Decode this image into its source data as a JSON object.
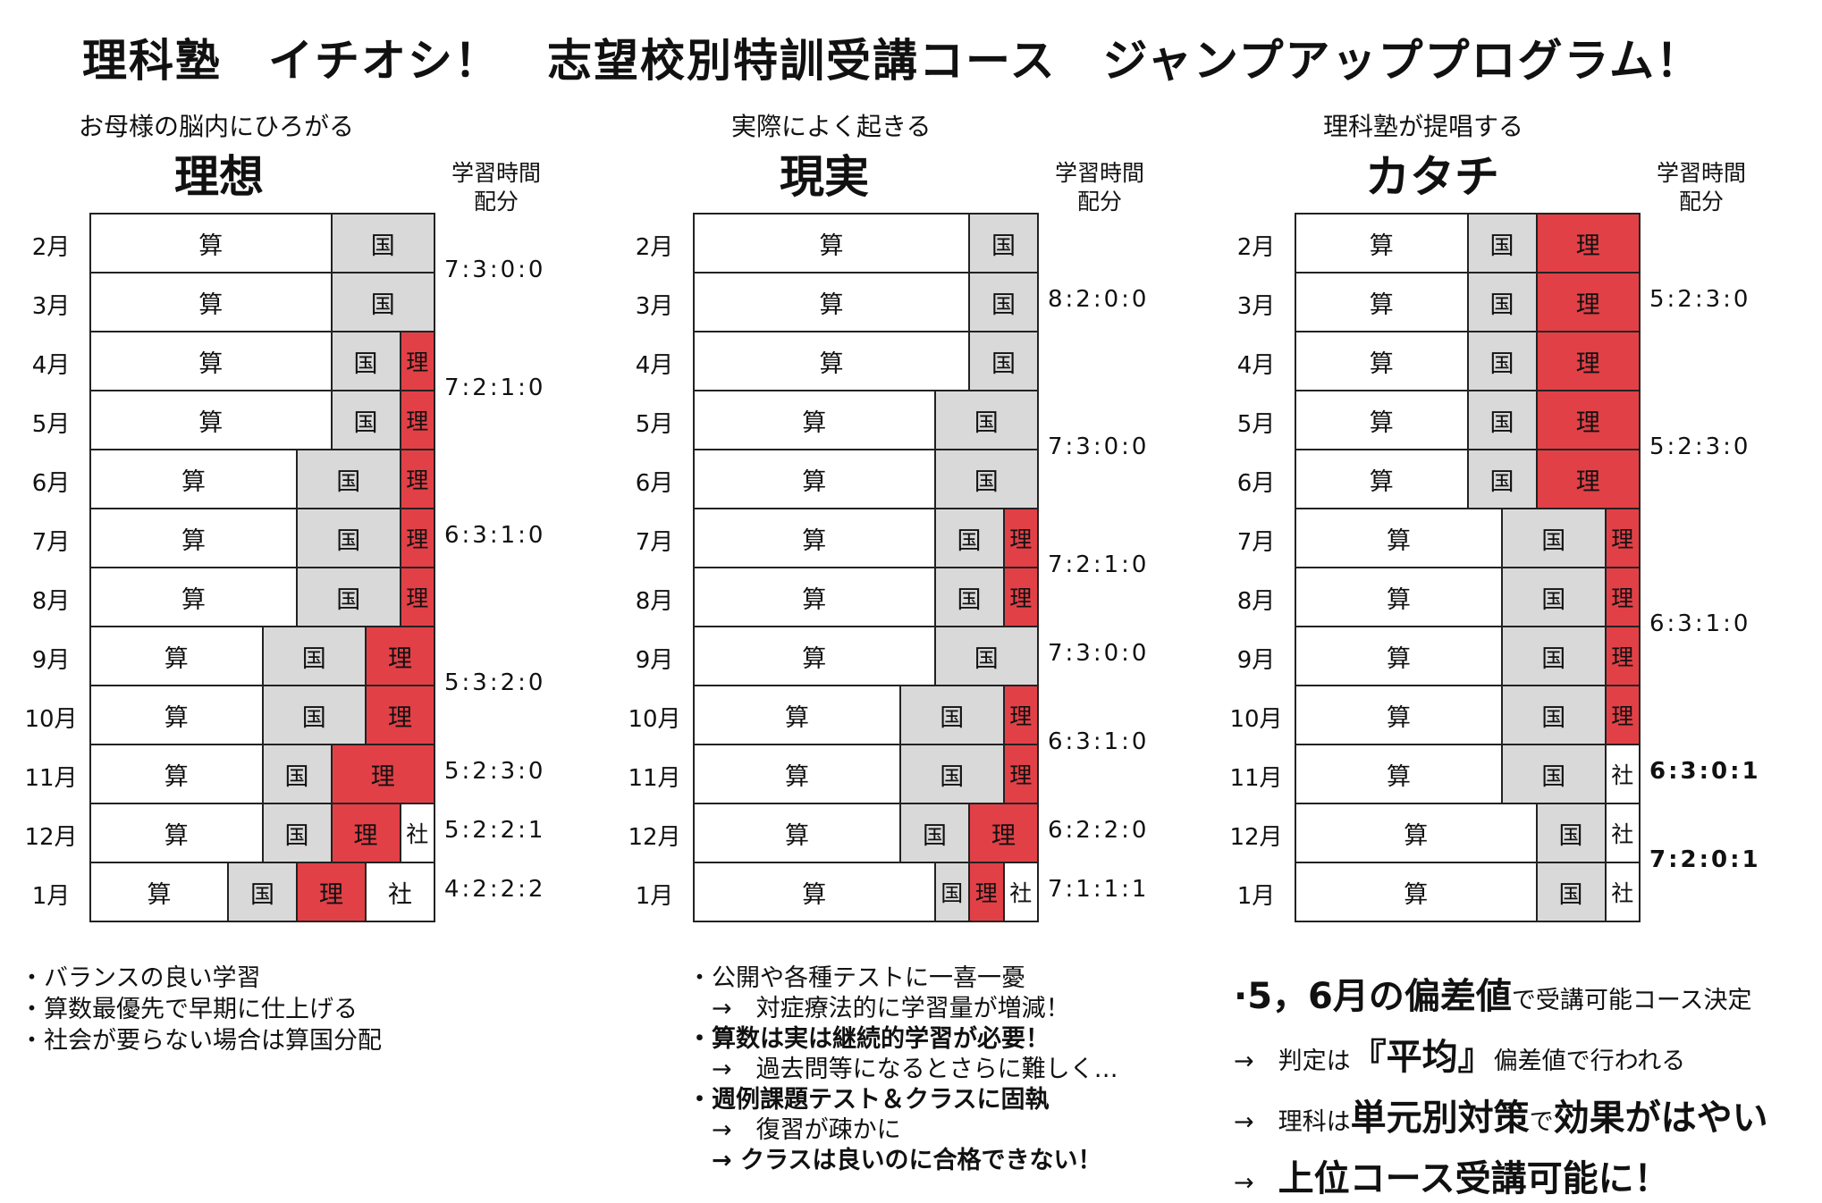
{
  "title": "理科塾　イチオシ！　志望校別特訓受講コース　ジャンプアッププログラム！",
  "time_header": [
    "学習時間",
    "配分"
  ],
  "subjects": {
    "san": "算",
    "koku": "国",
    "ri": "理",
    "sha": "社"
  },
  "colors": {
    "koku": "#d9d9d9",
    "ri": "#e24047",
    "san": "#ffffff",
    "sha": "#ffffff"
  },
  "columns": [
    {
      "subtitle": "お母様の脳内にひろがる",
      "heading": "理想",
      "months": [
        "2月",
        "3月",
        "4月",
        "5月",
        "6月",
        "7月",
        "8月",
        "9月",
        "10月",
        "11月",
        "12月",
        "1月"
      ],
      "rows": [
        [
          7,
          3,
          0,
          0
        ],
        [
          7,
          3,
          0,
          0
        ],
        [
          7,
          2,
          1,
          0
        ],
        [
          7,
          2,
          1,
          0
        ],
        [
          6,
          3,
          1,
          0
        ],
        [
          6,
          3,
          1,
          0
        ],
        [
          6,
          3,
          1,
          0
        ],
        [
          5,
          3,
          2,
          0
        ],
        [
          5,
          3,
          2,
          0
        ],
        [
          5,
          2,
          3,
          0
        ],
        [
          5,
          2,
          2,
          1
        ],
        [
          4,
          2,
          2,
          2
        ]
      ],
      "ratios": [
        {
          "text": "7:3:0:0",
          "row": 0.5
        },
        {
          "text": "7:2:1:0",
          "row": 2.5
        },
        {
          "text": "6:3:1:0",
          "row": 5.0
        },
        {
          "text": "5:3:2:0",
          "row": 7.5
        },
        {
          "text": "5:2:3:0",
          "row": 9.0
        },
        {
          "text": "5:2:2:1",
          "row": 10.0
        },
        {
          "text": "4:2:2:2",
          "row": 11.0
        }
      ],
      "notes": [
        {
          "text": "・バランスの良い学習",
          "bold": false
        },
        {
          "text": "・算数最優先で早期に仕上げる",
          "bold": false
        },
        {
          "text": "・社会が要らない場合は算国分配",
          "bold": false
        }
      ]
    },
    {
      "subtitle": "実際によく起きる",
      "heading": "現実",
      "months": [
        "2月",
        "3月",
        "4月",
        "5月",
        "6月",
        "7月",
        "8月",
        "9月",
        "10月",
        "11月",
        "12月",
        "1月"
      ],
      "rows": [
        [
          8,
          2,
          0,
          0
        ],
        [
          8,
          2,
          0,
          0
        ],
        [
          8,
          2,
          0,
          0
        ],
        [
          7,
          3,
          0,
          0
        ],
        [
          7,
          3,
          0,
          0
        ],
        [
          7,
          2,
          1,
          0
        ],
        [
          7,
          2,
          1,
          0
        ],
        [
          7,
          3,
          0,
          0
        ],
        [
          6,
          3,
          1,
          0
        ],
        [
          6,
          3,
          1,
          0
        ],
        [
          6,
          2,
          2,
          0
        ],
        [
          7,
          1,
          1,
          1
        ]
      ],
      "ratios": [
        {
          "text": "8:2:0:0",
          "row": 1.0
        },
        {
          "text": "7:3:0:0",
          "row": 3.5
        },
        {
          "text": "7:2:1:0",
          "row": 5.5
        },
        {
          "text": "7:3:0:0",
          "row": 7.0
        },
        {
          "text": "6:3:1:0",
          "row": 8.5
        },
        {
          "text": "6:2:2:0",
          "row": 10.0
        },
        {
          "text": "7:1:1:1",
          "row": 11.0
        }
      ],
      "notes": [
        {
          "text": "・公開や各種テストに一喜一憂",
          "bold": false
        },
        {
          "text": "　→　対症療法的に学習量が増減！",
          "bold": false
        },
        {
          "text": "・算数は実は継続的学習が必要！",
          "bold": true
        },
        {
          "text": "　→　過去問等になるとさらに難しく…",
          "bold": false
        },
        {
          "text": "・週例課題テスト＆クラスに固執",
          "bold": true
        },
        {
          "text": "　→　復習が疎かに",
          "bold": false
        },
        {
          "text": "　→ クラスは良いのに合格できない！",
          "bold": true
        }
      ]
    },
    {
      "subtitle": "理科塾が提唱する",
      "heading": "カタチ",
      "months": [
        "2月",
        "3月",
        "4月",
        "5月",
        "6月",
        "7月",
        "8月",
        "9月",
        "10月",
        "11月",
        "12月",
        "1月"
      ],
      "rows": [
        [
          5,
          2,
          3,
          0
        ],
        [
          5,
          2,
          3,
          0
        ],
        [
          5,
          2,
          3,
          0
        ],
        [
          5,
          2,
          3,
          0
        ],
        [
          5,
          2,
          3,
          0
        ],
        [
          6,
          3,
          1,
          0
        ],
        [
          6,
          3,
          1,
          0
        ],
        [
          6,
          3,
          1,
          0
        ],
        [
          6,
          3,
          1,
          0
        ],
        [
          6,
          3,
          0,
          1
        ],
        [
          7,
          2,
          0,
          1
        ],
        [
          7,
          2,
          0,
          1
        ]
      ],
      "ratios": [
        {
          "text": "5:2:3:0",
          "row": 1.0,
          "bold": false
        },
        {
          "text": "5:2:3:0",
          "row": 3.5,
          "bold": false
        },
        {
          "text": "6:3:1:0",
          "row": 6.5,
          "bold": false
        },
        {
          "text": "6:3:0:1",
          "row": 9.0,
          "bold": true
        },
        {
          "text": "7:2:0:1",
          "row": 10.5,
          "bold": true
        }
      ],
      "notes_rich": [
        [
          {
            "t": "·",
            "s": "lg"
          },
          {
            "t": "5，6月の偏差値",
            "s": "lg"
          },
          {
            "t": "で受講可能コース決定",
            "s": ""
          }
        ],
        [
          {
            "t": "→　判定は",
            "s": ""
          },
          {
            "t": "『平均』",
            "s": "lg"
          },
          {
            "t": "偏差値で行われる",
            "s": ""
          }
        ],
        [
          {
            "t": "→　理科は",
            "s": ""
          },
          {
            "t": "単元別対策",
            "s": "lg"
          },
          {
            "t": "で",
            "s": ""
          },
          {
            "t": "効果がはやい",
            "s": "lg"
          }
        ],
        [
          {
            "t": "→　",
            "s": ""
          },
          {
            "t": "上位コース受講可能に！",
            "s": "lg"
          }
        ]
      ]
    }
  ]
}
